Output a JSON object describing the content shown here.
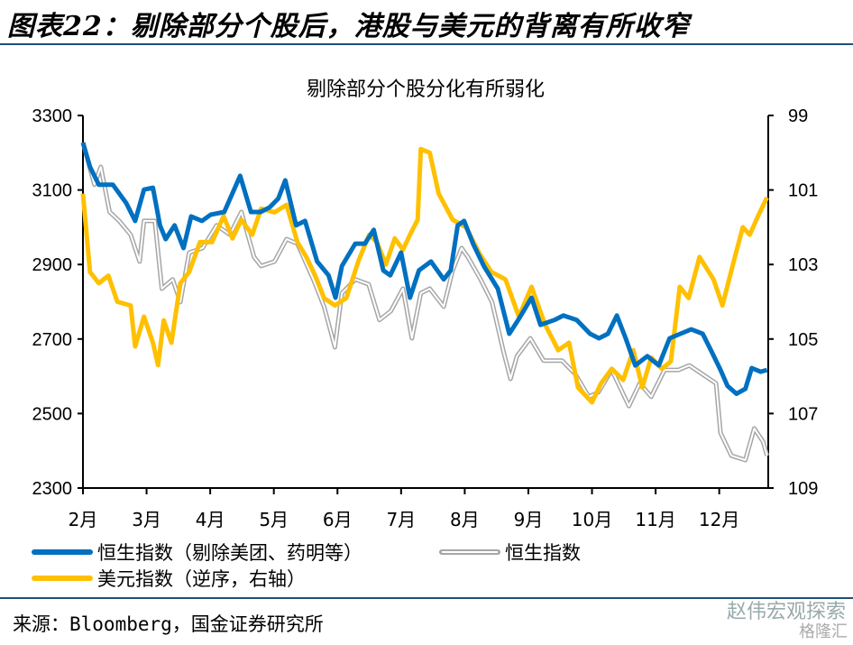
{
  "header": {
    "title": "图表22：剔除部分个股后，港股与美元的背离有所收窄"
  },
  "footer": {
    "source": "来源：Bloomberg，国金证券研究所",
    "watermark": "赵伟宏观探索",
    "watermark2": "格隆汇"
  },
  "colors": {
    "blue": "#0070c0",
    "gray": "#a6a6a6",
    "yellow": "#ffc000",
    "rule": "#1f4e79"
  },
  "chart_data": {
    "type": "line",
    "title": "剔除部分个股分化有所弱化",
    "xlabel": "",
    "x_unit": "months since Feb 1",
    "x_ticks": [
      0,
      1,
      2,
      3,
      4,
      5,
      6,
      7,
      8,
      9,
      10
    ],
    "x_tick_labels": [
      "2月",
      "3月",
      "4月",
      "5月",
      "6月",
      "7月",
      "8月",
      "9月",
      "10月",
      "11月",
      "12月"
    ],
    "xlim": [
      0,
      10.77
    ],
    "y_left": {
      "lim": [
        2300,
        3300
      ],
      "ticks": [
        2300,
        2500,
        2700,
        2900,
        3100,
        3300
      ]
    },
    "y_right": {
      "lim": [
        99,
        109
      ],
      "ticks": [
        99,
        101,
        103,
        105,
        107,
        109
      ],
      "inverted": true
    },
    "grid": false,
    "legend_position": "bottom",
    "series": [
      {
        "name": "恒生指数（剔除美团、药明等）",
        "axis": "left",
        "style": "solid-blue",
        "x": [
          0,
          0.11,
          0.25,
          0.47,
          0.68,
          0.82,
          0.96,
          1.1,
          1.21,
          1.3,
          1.44,
          1.58,
          1.7,
          1.87,
          2.01,
          2.22,
          2.47,
          2.64,
          2.79,
          2.93,
          3.07,
          3.18,
          3.35,
          3.49,
          3.68,
          3.86,
          3.97,
          4.07,
          4.28,
          4.43,
          4.57,
          4.72,
          4.83,
          5.0,
          5.14,
          5.28,
          5.47,
          5.67,
          5.78,
          5.89,
          5.99,
          6.13,
          6.3,
          6.52,
          6.7,
          6.84,
          7.05,
          7.19,
          7.41,
          7.55,
          7.76,
          7.97,
          8.11,
          8.25,
          8.39,
          8.53,
          8.68,
          8.87,
          9.05,
          9.22,
          9.39,
          9.56,
          9.74,
          9.88,
          10.02,
          10.13,
          10.27,
          10.41,
          10.51,
          10.65,
          10.75
        ],
        "y": [
          3227,
          3162,
          3114,
          3114,
          3065,
          3017,
          3101,
          3106,
          3005,
          2968,
          3005,
          2944,
          3029,
          3017,
          3034,
          3041,
          3138,
          3041,
          3041,
          3053,
          3077,
          3126,
          3005,
          3017,
          2908,
          2871,
          2811,
          2896,
          2956,
          2956,
          2993,
          2884,
          2871,
          2932,
          2811,
          2884,
          2908,
          2860,
          2884,
          3005,
          3017,
          2956,
          2896,
          2835,
          2714,
          2751,
          2811,
          2738,
          2751,
          2763,
          2751,
          2714,
          2702,
          2714,
          2763,
          2702,
          2629,
          2654,
          2629,
          2702,
          2714,
          2726,
          2714,
          2666,
          2617,
          2574,
          2553,
          2566,
          2622,
          2612,
          2617
        ]
      },
      {
        "name": "恒生指数",
        "axis": "left",
        "style": "double-gray",
        "x": [
          0,
          0.18,
          0.28,
          0.42,
          0.57,
          0.75,
          0.89,
          0.96,
          1.13,
          1.24,
          1.41,
          1.53,
          1.67,
          1.88,
          2.1,
          2.31,
          2.49,
          2.69,
          2.8,
          3.01,
          3.2,
          3.37,
          3.62,
          3.79,
          3.96,
          4.07,
          4.28,
          4.49,
          4.66,
          4.84,
          5.03,
          5.17,
          5.31,
          5.45,
          5.67,
          5.81,
          5.95,
          6.05,
          6.25,
          6.43,
          6.61,
          6.72,
          6.82,
          7.03,
          7.24,
          7.53,
          7.74,
          7.95,
          8.1,
          8.31,
          8.58,
          8.75,
          8.93,
          9.14,
          9.36,
          9.53,
          9.74,
          9.95,
          10.02,
          10.19,
          10.41,
          10.55,
          10.69,
          10.75
        ],
        "y": [
          3227,
          3114,
          3162,
          3041,
          3017,
          2980,
          2908,
          3017,
          3017,
          2835,
          2860,
          2799,
          2932,
          2944,
          3005,
          2980,
          3041,
          2920,
          2896,
          2908,
          2968,
          2956,
          2860,
          2787,
          2678,
          2823,
          2860,
          2847,
          2751,
          2775,
          2835,
          2702,
          2823,
          2835,
          2787,
          2884,
          2944,
          2920,
          2860,
          2799,
          2666,
          2593,
          2654,
          2702,
          2642,
          2642,
          2605,
          2545,
          2557,
          2617,
          2520,
          2581,
          2545,
          2617,
          2617,
          2629,
          2605,
          2581,
          2448,
          2387,
          2375,
          2460,
          2424,
          2387
        ]
      },
      {
        "name": "美元指数（逆序，右轴）",
        "axis": "right",
        "style": "solid-yellow",
        "x": [
          0,
          0.11,
          0.25,
          0.4,
          0.54,
          0.75,
          0.82,
          0.96,
          1.1,
          1.18,
          1.27,
          1.39,
          1.53,
          1.67,
          1.84,
          2.03,
          2.21,
          2.35,
          2.49,
          2.66,
          2.8,
          3.01,
          3.2,
          3.37,
          3.51,
          3.65,
          3.79,
          3.96,
          4.14,
          4.33,
          4.5,
          4.62,
          4.76,
          4.9,
          5.03,
          5.14,
          5.26,
          5.31,
          5.45,
          5.59,
          5.81,
          6.02,
          6.23,
          6.42,
          6.64,
          6.85,
          7.05,
          7.26,
          7.47,
          7.64,
          7.78,
          8.0,
          8.14,
          8.31,
          8.49,
          8.65,
          8.79,
          8.93,
          9.1,
          9.24,
          9.38,
          9.52,
          9.69,
          9.91,
          10.05,
          10.23,
          10.37,
          10.48,
          10.61,
          10.75
        ],
        "y": [
          101.1,
          103.2,
          103.5,
          103.3,
          104.0,
          104.1,
          105.2,
          104.4,
          105.1,
          105.7,
          104.5,
          105.1,
          103.5,
          103.2,
          102.4,
          102.4,
          101.7,
          102.3,
          101.8,
          102.2,
          101.5,
          101.6,
          101.4,
          102.4,
          102.8,
          103.3,
          103.9,
          104.1,
          103.9,
          102.9,
          102.2,
          102.4,
          103.0,
          102.3,
          102.6,
          102.2,
          101.8,
          99.9,
          100.0,
          101.1,
          101.8,
          102.0,
          102.7,
          103.2,
          103.4,
          104.4,
          103.6,
          104.6,
          105.3,
          105.1,
          106.3,
          106.7,
          106.2,
          105.8,
          106.1,
          105.3,
          106.3,
          105.5,
          105.8,
          105.6,
          103.6,
          103.9,
          102.8,
          103.4,
          104.1,
          102.9,
          102.0,
          102.2,
          101.7,
          101.2
        ]
      }
    ]
  }
}
